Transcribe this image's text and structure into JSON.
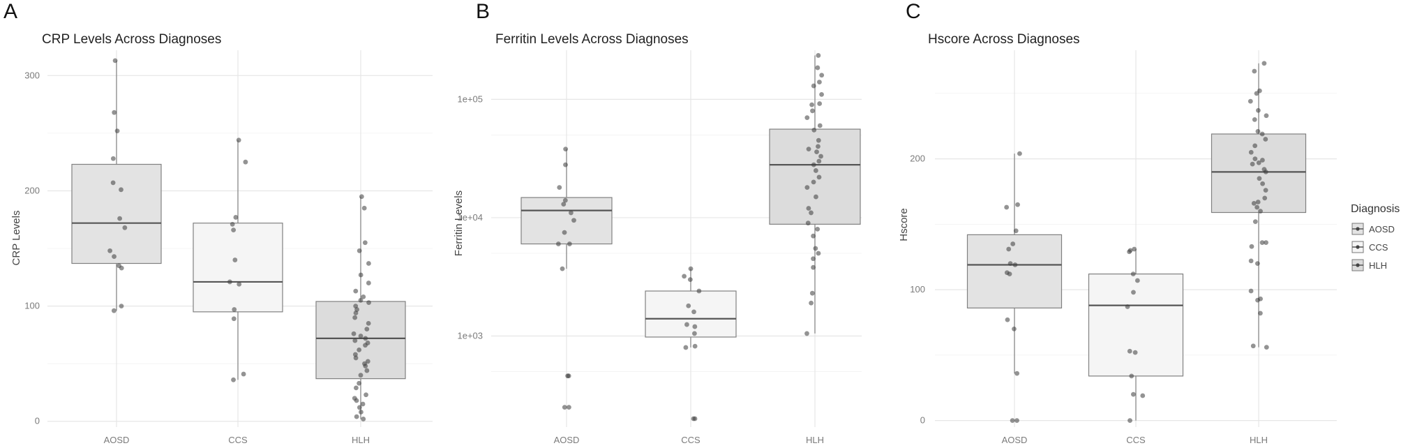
{
  "figure": {
    "legend": {
      "title": "Diagnosis",
      "entries": [
        {
          "label": "AOSD",
          "fill": "#e3e3e3"
        },
        {
          "label": "CCS",
          "fill": "#f5f5f5"
        },
        {
          "label": "HLH",
          "fill": "#dcdcdc"
        }
      ]
    }
  },
  "chart_data": [
    {
      "panel": "A",
      "type": "box",
      "title": "CRP Levels Across Diagnoses",
      "xlabel": "",
      "ylabel": "CRP Levels",
      "scale": "linear",
      "ylim": [
        -5,
        322
      ],
      "yticks": [
        0,
        100,
        200,
        300
      ],
      "ytick_labels": [
        "0",
        "100",
        "200",
        "300"
      ],
      "categories": [
        "AOSD",
        "CCS",
        "HLH"
      ],
      "fills": [
        "#e3e3e3",
        "#f5f5f5",
        "#dcdcdc"
      ],
      "boxes": [
        {
          "category": "AOSD",
          "whisker_low": 96,
          "q1": 137,
          "median": 172,
          "q3": 223,
          "whisker_high": 313
        },
        {
          "category": "CCS",
          "whisker_low": 36,
          "q1": 95,
          "median": 121,
          "q3": 172,
          "whisker_high": 244
        },
        {
          "category": "HLH",
          "whisker_low": 2,
          "q1": 37,
          "median": 72,
          "q3": 104,
          "whisker_high": 195
        }
      ],
      "points": [
        [
          96,
          100,
          133,
          135,
          143,
          148,
          168,
          176,
          201,
          207,
          228,
          252,
          268,
          313
        ],
        [
          36,
          41,
          89,
          97,
          119,
          121,
          140,
          166,
          171,
          177,
          225,
          244
        ],
        [
          2,
          4,
          8,
          12,
          15,
          18,
          20,
          23,
          29,
          33,
          40,
          44,
          48,
          50,
          52,
          55,
          58,
          62,
          66,
          68,
          70,
          72,
          74,
          76,
          80,
          85,
          90,
          94,
          97,
          100,
          103,
          105,
          108,
          113,
          120,
          127,
          137,
          148,
          155,
          185,
          195
        ]
      ]
    },
    {
      "panel": "B",
      "type": "box",
      "title": "Ferritin Levels Across Diagnoses",
      "xlabel": "",
      "ylabel": "Ferritin Levels",
      "scale": "log10",
      "ylim": [
        170,
        260000
      ],
      "yticks": [
        1000,
        10000,
        100000
      ],
      "ytick_labels": [
        "1e+03",
        "1e+04",
        "1e+05"
      ],
      "categories": [
        "AOSD",
        "CCS",
        "HLH"
      ],
      "fills": [
        "#e3e3e3",
        "#f5f5f5",
        "#dcdcdc"
      ],
      "boxes": [
        {
          "category": "AOSD",
          "whisker_low": 3700,
          "q1": 6000,
          "median": 11500,
          "q3": 14800,
          "whisker_high": 38000
        },
        {
          "category": "CCS",
          "whisker_low": 800,
          "q1": 980,
          "median": 1400,
          "q3": 2400,
          "whisker_high": 3700
        },
        {
          "category": "HLH",
          "whisker_low": 1050,
          "q1": 8800,
          "median": 28000,
          "q3": 56000,
          "whisker_high": 235000
        }
      ],
      "points": [
        [
          250,
          250,
          460,
          460,
          3700,
          6000,
          6000,
          7500,
          9500,
          11000,
          13000,
          14000,
          18000,
          28000,
          38000
        ],
        [
          200,
          200,
          800,
          820,
          1050,
          1200,
          1250,
          1600,
          1800,
          2400,
          3000,
          3200,
          3700
        ],
        [
          1050,
          1900,
          2300,
          3800,
          4500,
          5000,
          5500,
          7000,
          8000,
          9000,
          11000,
          12000,
          15000,
          18000,
          20000,
          22000,
          25000,
          28000,
          30000,
          33000,
          36000,
          38000,
          40000,
          45000,
          55000,
          60000,
          70000,
          80000,
          90000,
          92000,
          110000,
          130000,
          140000,
          160000,
          185000,
          235000
        ]
      ]
    },
    {
      "panel": "C",
      "type": "box",
      "title": "Hscore Across Diagnoses",
      "xlabel": "",
      "ylabel": "Hscore",
      "scale": "linear",
      "ylim": [
        -5,
        283
      ],
      "yticks": [
        0,
        100,
        200
      ],
      "ytick_labels": [
        "0",
        "100",
        "200"
      ],
      "categories": [
        "AOSD",
        "CCS",
        "HLH"
      ],
      "fills": [
        "#e3e3e3",
        "#f5f5f5",
        "#dcdcdc"
      ],
      "boxes": [
        {
          "category": "AOSD",
          "whisker_low": 36,
          "q1": 86,
          "median": 119,
          "q3": 142,
          "whisker_high": 204
        },
        {
          "category": "CCS",
          "whisker_low": 0,
          "q1": 34,
          "median": 88,
          "q3": 112,
          "whisker_high": 131
        },
        {
          "category": "HLH",
          "whisker_low": 56,
          "q1": 159,
          "median": 190,
          "q3": 219,
          "whisker_high": 273
        }
      ],
      "points": [
        [
          0,
          0,
          36,
          70,
          77,
          112,
          113,
          119,
          120,
          131,
          135,
          145,
          163,
          165,
          204
        ],
        [
          0,
          19,
          20,
          34,
          52,
          53,
          87,
          98,
          107,
          112,
          129,
          130,
          131
        ],
        [
          56,
          57,
          82,
          92,
          93,
          99,
          120,
          122,
          133,
          136,
          136,
          152,
          160,
          163,
          166,
          167,
          170,
          176,
          181,
          185,
          190,
          192,
          196,
          197,
          199,
          200,
          205,
          210,
          215,
          219,
          221,
          230,
          233,
          237,
          244,
          250,
          252,
          267,
          273
        ]
      ]
    }
  ]
}
